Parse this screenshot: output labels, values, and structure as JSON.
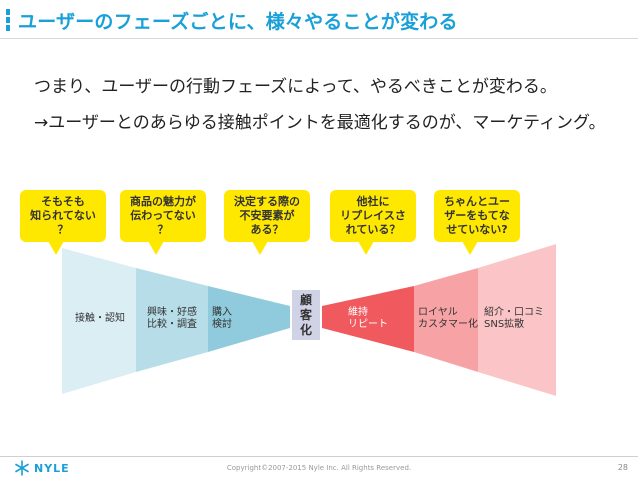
{
  "slide": {
    "title": "ユーザーのフェーズごとに、様々やることが変わる",
    "line1": "つまり、ユーザーの行動フェーズによって、やるべきことが変わる。",
    "line2": "→ユーザーとのあらゆる接触ポイントを最適化するのが、マーケティング。"
  },
  "bubbles": [
    {
      "text": "そもそも\n知られてない\n？"
    },
    {
      "text": "商品の魅力が\n伝わってない\n？"
    },
    {
      "text": "決定する際の\n不安要素が\nある？"
    },
    {
      "text": "他社に\nリプレイスさ\nれている？"
    },
    {
      "text": "ちゃんとユー\nザーをもてな\nせていない?"
    }
  ],
  "stages": [
    {
      "label": "接触・認知",
      "color": "#dbeef4"
    },
    {
      "label": "興味・好感\n比較・調査",
      "color": "#b7dde9"
    },
    {
      "label": "購入\n検討",
      "color": "#8fcbdc"
    },
    {
      "label": "維持\nリピート",
      "color": "#f05a5f"
    },
    {
      "label": "ロイヤル\nカスタマー化",
      "color": "#f7a3a6"
    },
    {
      "label": "紹介・口コミ\nSNS拡散",
      "color": "#fbc5c7"
    }
  ],
  "customer": {
    "label": "顧\n客\n化"
  },
  "footer": {
    "logo_text": "NYLE",
    "copyright": "Copyright©2007-2015 Nyle Inc. All Rights Reserved.",
    "page_number": "28"
  },
  "colors": {
    "accent": "#1aa0d8",
    "bubble": "#ffe800"
  }
}
